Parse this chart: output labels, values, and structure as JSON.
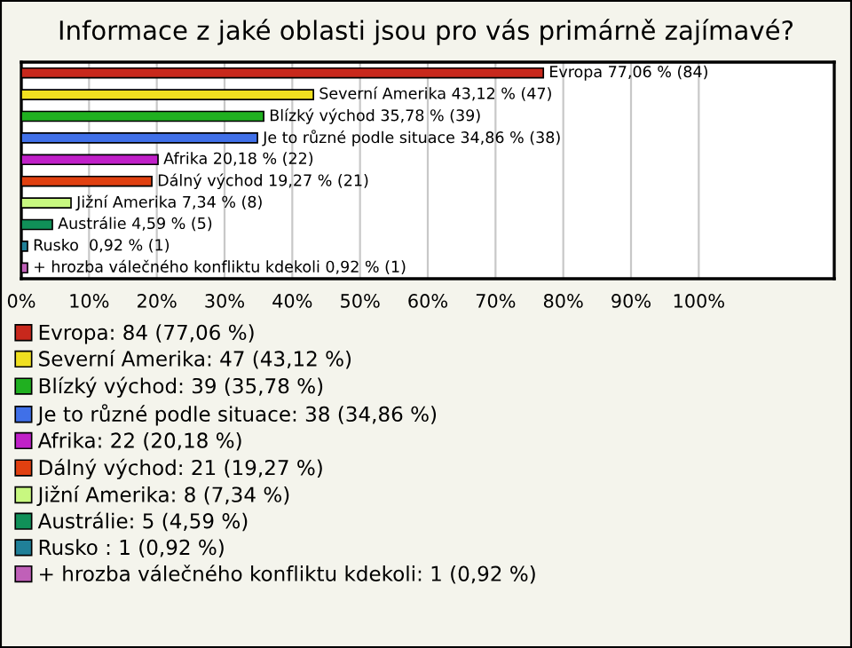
{
  "chart_data": {
    "type": "bar",
    "orientation": "horizontal",
    "title": "Informace z jaké oblasti jsou pro vás primárně zajímavé?",
    "categories": [
      null,
      null,
      null,
      null,
      null,
      null,
      null,
      null,
      null,
      null
    ],
    "series": [
      {
        "name": "Evropa: 84 (77,06 %)",
        "color": "#c8281c",
        "values": [
          77.06,
          null,
          null,
          null,
          null,
          null,
          null,
          null,
          null,
          null
        ],
        "value_labels": [
          "Evropa 77,06 % (84)",
          null,
          null,
          null,
          null,
          null,
          null,
          null,
          null,
          null
        ]
      },
      {
        "name": "Severní Amerika: 47 (43,12 %)",
        "color": "#f0e020",
        "values": [
          null,
          43.12,
          null,
          null,
          null,
          null,
          null,
          null,
          null,
          null
        ],
        "value_labels": [
          null,
          "Severní Amerika 43,12 % (47)",
          null,
          null,
          null,
          null,
          null,
          null,
          null,
          null
        ]
      },
      {
        "name": "Blízký východ: 39 (35,78 %)",
        "color": "#20b020",
        "values": [
          null,
          null,
          35.78,
          null,
          null,
          null,
          null,
          null,
          null,
          null
        ],
        "value_labels": [
          null,
          null,
          "Blízký východ 35,78 % (39)",
          null,
          null,
          null,
          null,
          null,
          null,
          null
        ]
      },
      {
        "name": "Je to různé podle situace: 38 (34,86 %)",
        "color": "#4070e8",
        "values": [
          null,
          null,
          null,
          34.86,
          null,
          null,
          null,
          null,
          null,
          null
        ],
        "value_labels": [
          null,
          null,
          null,
          "Je to různé podle situace 34,86 % (38)",
          null,
          null,
          null,
          null,
          null,
          null
        ]
      },
      {
        "name": "Afrika: 22 (20,18 %)",
        "color": "#c020c8",
        "values": [
          null,
          null,
          null,
          null,
          20.18,
          null,
          null,
          null,
          null,
          null
        ],
        "value_labels": [
          null,
          null,
          null,
          null,
          "Afrika 20,18 % (22)",
          null,
          null,
          null,
          null,
          null
        ]
      },
      {
        "name": "Dálný východ: 21 (19,27 %)",
        "color": "#e04010",
        "values": [
          null,
          null,
          null,
          null,
          null,
          19.27,
          null,
          null,
          null,
          null
        ],
        "value_labels": [
          null,
          null,
          null,
          null,
          null,
          "Dálný východ 19,27 % (21)",
          null,
          null,
          null,
          null
        ]
      },
      {
        "name": "Jižní Amerika: 8 (7,34 %)",
        "color": "#c8f880",
        "values": [
          null,
          null,
          null,
          null,
          null,
          null,
          7.34,
          null,
          null,
          null
        ],
        "value_labels": [
          null,
          null,
          null,
          null,
          null,
          null,
          "Jižní Amerika 7,34 % (8)",
          null,
          null,
          null
        ]
      },
      {
        "name": "Austrálie: 5 (4,59 %)",
        "color": "#109058",
        "values": [
          null,
          null,
          null,
          null,
          null,
          null,
          null,
          4.59,
          null,
          null
        ],
        "value_labels": [
          null,
          null,
          null,
          null,
          null,
          null,
          null,
          "Austrálie 4,59 % (5)",
          null,
          null
        ]
      },
      {
        "name": "Rusko : 1 (0,92 %)",
        "color": "#208098",
        "values": [
          null,
          null,
          null,
          null,
          null,
          null,
          null,
          null,
          0.92,
          null
        ],
        "value_labels": [
          null,
          null,
          null,
          null,
          null,
          null,
          null,
          null,
          "Rusko  0,92 % (1)",
          null
        ]
      },
      {
        "name": "+ hrozba válečného konfliktu kdekoli: 1 (0,92 %)",
        "color": "#c060b8",
        "values": [
          null,
          null,
          null,
          null,
          null,
          null,
          null,
          null,
          null,
          0.92
        ],
        "value_labels": [
          null,
          null,
          null,
          null,
          null,
          null,
          null,
          null,
          null,
          "+ hrozba válečného konfliktu kdekoli 0,92 % (1)"
        ]
      }
    ],
    "xlim": [
      0,
      120
    ],
    "xticks": [
      {
        "value": 0,
        "label": "0%"
      },
      {
        "value": 10,
        "label": "10%"
      },
      {
        "value": 20,
        "label": "20%"
      },
      {
        "value": 30,
        "label": "30%"
      },
      {
        "value": 40,
        "label": "40%"
      },
      {
        "value": 50,
        "label": "50%"
      },
      {
        "value": 60,
        "label": "60%"
      },
      {
        "value": 70,
        "label": "70%"
      },
      {
        "value": 80,
        "label": "80%"
      },
      {
        "value": 90,
        "label": "90%"
      },
      {
        "value": 100,
        "label": "100%"
      }
    ],
    "grid": "x",
    "legend": "bottom",
    "tick_labels": "x"
  }
}
